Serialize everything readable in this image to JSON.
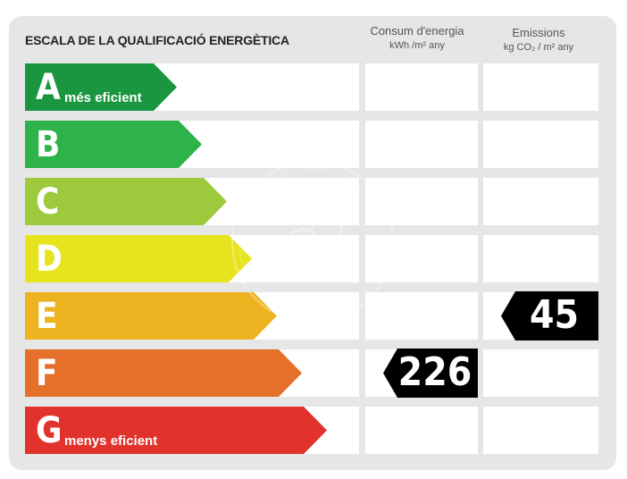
{
  "header": {
    "title": "ESCALA DE LA QUALIFICACIÓ ENERGÈTICA",
    "consumption": {
      "line1": "Consum d'energia",
      "line2": "kWh /m² any"
    },
    "emissions": {
      "line1": "Emissions",
      "line2": "kg CO₂ / m² any"
    }
  },
  "ratings": [
    {
      "letter": "A",
      "caption": "més eficient",
      "color": "#1a9641"
    },
    {
      "letter": "B",
      "caption": "",
      "color": "#2db34a"
    },
    {
      "letter": "C",
      "caption": "",
      "color": "#9dc93c"
    },
    {
      "letter": "D",
      "caption": "",
      "color": "#e6e41f"
    },
    {
      "letter": "E",
      "caption": "",
      "color": "#eeb321"
    },
    {
      "letter": "F",
      "caption": "",
      "color": "#e4702a"
    },
    {
      "letter": "G",
      "caption": "menys eficient",
      "color": "#e2322c"
    }
  ],
  "consumption_value": {
    "value": "226",
    "rating": "F"
  },
  "emissions_value": {
    "value": "45",
    "rating": "E"
  }
}
